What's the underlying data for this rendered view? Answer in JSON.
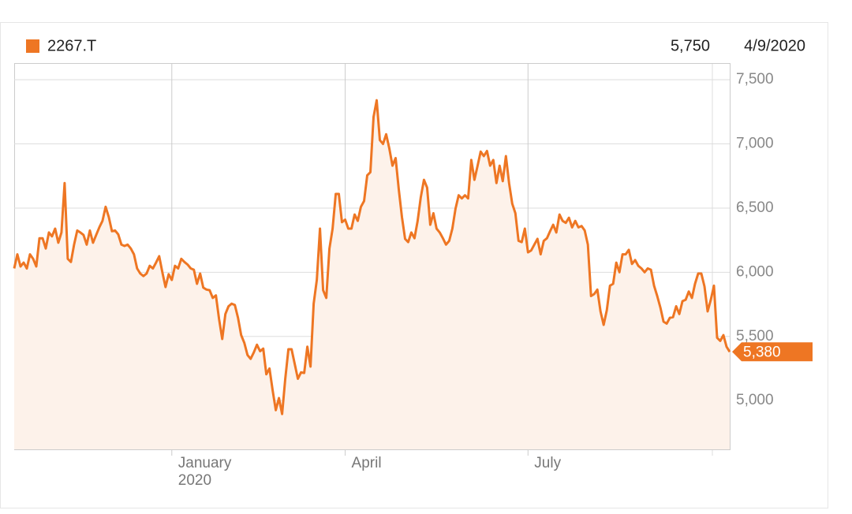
{
  "chart_data": {
    "type": "line",
    "series": [
      {
        "name": "2267.T",
        "color": "#ee7623",
        "fill": "#fdf2ea",
        "values": [
          6030,
          6140,
          6045,
          6075,
          6030,
          6140,
          6105,
          6045,
          6265,
          6265,
          6185,
          6310,
          6280,
          6340,
          6230,
          6310,
          6695,
          6105,
          6080,
          6215,
          6325,
          6310,
          6290,
          6215,
          6325,
          6230,
          6290,
          6350,
          6400,
          6510,
          6430,
          6320,
          6325,
          6295,
          6215,
          6205,
          6215,
          6185,
          6140,
          6030,
          5990,
          5970,
          5990,
          6050,
          6030,
          6075,
          6125,
          6000,
          5885,
          5985,
          5940,
          6050,
          6030,
          6105,
          6080,
          6060,
          6030,
          6020,
          5910,
          5990,
          5880,
          5865,
          5860,
          5800,
          5820,
          5635,
          5480,
          5675,
          5735,
          5755,
          5745,
          5645,
          5510,
          5450,
          5355,
          5325,
          5375,
          5435,
          5385,
          5405,
          5205,
          5250,
          5080,
          4925,
          5020,
          4895,
          5170,
          5400,
          5400,
          5285,
          5170,
          5220,
          5215,
          5420,
          5265,
          5755,
          5940,
          6340,
          5860,
          5800,
          6185,
          6340,
          6610,
          6610,
          6390,
          6410,
          6340,
          6340,
          6450,
          6400,
          6510,
          6555,
          6755,
          6780,
          7210,
          7340,
          7030,
          7000,
          7075,
          6965,
          6830,
          6890,
          6645,
          6430,
          6260,
          6235,
          6310,
          6265,
          6400,
          6585,
          6720,
          6660,
          6370,
          6460,
          6340,
          6310,
          6265,
          6215,
          6245,
          6340,
          6495,
          6600,
          6575,
          6600,
          6575,
          6875,
          6720,
          6830,
          6940,
          6905,
          6945,
          6830,
          6875,
          6695,
          6830,
          6710,
          6905,
          6695,
          6535,
          6460,
          6245,
          6235,
          6340,
          6155,
          6170,
          6215,
          6260,
          6140,
          6245,
          6265,
          6320,
          6370,
          6310,
          6450,
          6400,
          6385,
          6425,
          6350,
          6400,
          6350,
          6360,
          6325,
          6215,
          5815,
          5830,
          5865,
          5695,
          5590,
          5705,
          5895,
          5910,
          6075,
          6000,
          6140,
          6140,
          6175,
          6065,
          6095,
          6050,
          6030,
          6000,
          6030,
          6020,
          5895,
          5815,
          5725,
          5615,
          5600,
          5645,
          5650,
          5735,
          5675,
          5775,
          5785,
          5850,
          5800,
          5910,
          5990,
          5990,
          5890,
          5695,
          5785,
          5895,
          5490,
          5465,
          5510,
          5420,
          5380
        ]
      }
    ],
    "categories": [
      null,
      null,
      null,
      null,
      null,
      null,
      null,
      null,
      null,
      null,
      null,
      null,
      null,
      null,
      null,
      null,
      null,
      null,
      null,
      null,
      null,
      null,
      null,
      null,
      null,
      null,
      null,
      null,
      null,
      null,
      null,
      null,
      null,
      null,
      null,
      null,
      null,
      null,
      null,
      null,
      null,
      null,
      null,
      null,
      null,
      null,
      null,
      null,
      null,
      null,
      "January 2020",
      null,
      null,
      null,
      null,
      null,
      null,
      null,
      null,
      null,
      null,
      null,
      null,
      null,
      null,
      null,
      null,
      null,
      null,
      null,
      null,
      null,
      null,
      null,
      null,
      null,
      null,
      null,
      null,
      null,
      null,
      null,
      null,
      null,
      null,
      null,
      null,
      null,
      null,
      null,
      null,
      null,
      null,
      null,
      null,
      null,
      null,
      null,
      null,
      null,
      null,
      null,
      null,
      null,
      null,
      "April",
      null,
      null,
      null,
      null,
      null,
      null,
      null,
      null,
      null,
      null,
      null,
      null,
      null,
      null,
      null,
      null,
      null,
      null,
      null,
      null,
      null,
      null,
      null,
      null,
      null,
      null,
      null,
      null,
      null,
      null,
      null,
      null,
      null,
      null,
      null,
      null,
      null,
      null,
      null,
      null,
      null,
      null,
      null,
      null,
      null,
      null,
      null,
      null,
      null,
      null,
      null,
      null,
      null,
      null,
      null,
      null,
      null,
      "July",
      null,
      null,
      null,
      null,
      null,
      null,
      null,
      null,
      null,
      null,
      null,
      null,
      null,
      null,
      null,
      null,
      null,
      null,
      null,
      null,
      null,
      null,
      null,
      null,
      null,
      null,
      null,
      null,
      null,
      null,
      null,
      null,
      null,
      null,
      null,
      null,
      null,
      null,
      null,
      null,
      null,
      null,
      null,
      null,
      null,
      null,
      null,
      null,
      null,
      null,
      null,
      null,
      null,
      null,
      null,
      null,
      null,
      null,
      null,
      null,
      null,
      null,
      null,
      null
    ],
    "ylim": [
      4620,
      7630
    ],
    "yticks": [
      {
        "value": 5000,
        "label": "5,000"
      },
      {
        "value": 5500,
        "label": "5,500"
      },
      {
        "value": 6000,
        "label": "6,000"
      },
      {
        "value": 6500,
        "label": "6,500"
      },
      {
        "value": 7000,
        "label": "7,000"
      },
      {
        "value": 7500,
        "label": "7,500"
      }
    ],
    "grid": true,
    "hover": {
      "value": 5750,
      "label": "5,750",
      "date": "4/9/2020"
    },
    "current_price": {
      "value": 5380,
      "label": "5,380"
    }
  }
}
